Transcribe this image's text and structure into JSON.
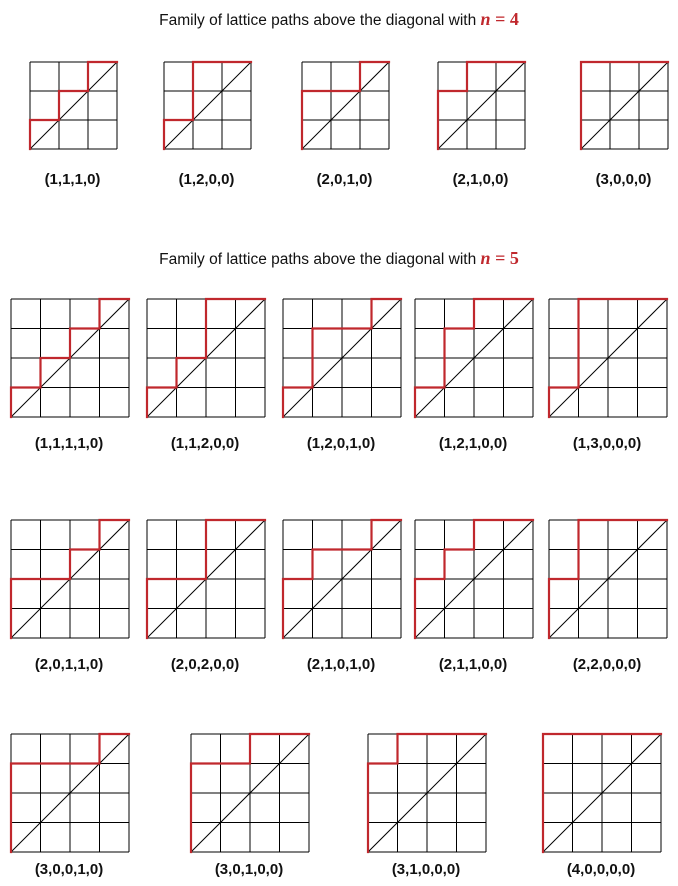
{
  "colors": {
    "path": "#c0282d",
    "grid": "#000000",
    "text": "#111111"
  },
  "families": [
    {
      "title": {
        "prefix": "Family of lattice paths above the diagonal with ",
        "var": "n",
        "eq": " = 4"
      },
      "size": 3,
      "rows": [
        [
          {
            "label": "(1,1,1,0)",
            "steps": [
              1,
              1,
              1,
              0
            ]
          },
          {
            "label": "(1,2,0,0)",
            "steps": [
              1,
              2,
              0,
              0
            ]
          },
          {
            "label": "(2,0,1,0)",
            "steps": [
              2,
              0,
              1,
              0
            ]
          },
          {
            "label": "(2,1,0,0)",
            "steps": [
              2,
              1,
              0,
              0
            ]
          },
          {
            "label": "(3,0,0,0)",
            "steps": [
              3,
              0,
              0,
              0
            ]
          }
        ]
      ]
    },
    {
      "title": {
        "prefix": "Family of lattice paths above the diagonal with ",
        "var": "n",
        "eq": " = 5"
      },
      "size": 4,
      "rows": [
        [
          {
            "label": "(1,1,1,1,0)",
            "steps": [
              1,
              1,
              1,
              1,
              0
            ]
          },
          {
            "label": "(1,1,2,0,0)",
            "steps": [
              1,
              1,
              2,
              0,
              0
            ]
          },
          {
            "label": "(1,2,0,1,0)",
            "steps": [
              1,
              2,
              0,
              1,
              0
            ]
          },
          {
            "label": "(1,2,1,0,0)",
            "steps": [
              1,
              2,
              1,
              0,
              0
            ]
          },
          {
            "label": "(1,3,0,0,0)",
            "steps": [
              1,
              3,
              0,
              0,
              0
            ]
          }
        ],
        [
          {
            "label": "(2,0,1,1,0)",
            "steps": [
              2,
              0,
              1,
              1,
              0
            ]
          },
          {
            "label": "(2,0,2,0,0)",
            "steps": [
              2,
              0,
              2,
              0,
              0
            ]
          },
          {
            "label": "(2,1,0,1,0)",
            "steps": [
              2,
              1,
              0,
              1,
              0
            ]
          },
          {
            "label": "(2,1,1,0,0)",
            "steps": [
              2,
              1,
              1,
              0,
              0
            ]
          },
          {
            "label": "(2,2,0,0,0)",
            "steps": [
              2,
              2,
              0,
              0,
              0
            ]
          }
        ],
        [
          {
            "label": "(3,0,0,1,0)",
            "steps": [
              3,
              0,
              0,
              1,
              0
            ]
          },
          {
            "label": "(3,0,1,0,0)",
            "steps": [
              3,
              0,
              1,
              0,
              0
            ]
          },
          {
            "label": "(3,1,0,0,0)",
            "steps": [
              3,
              1,
              0,
              0,
              0
            ]
          },
          {
            "label": "(4,0,0,0,0)",
            "steps": [
              4,
              0,
              0,
              0,
              0
            ]
          }
        ]
      ]
    }
  ]
}
